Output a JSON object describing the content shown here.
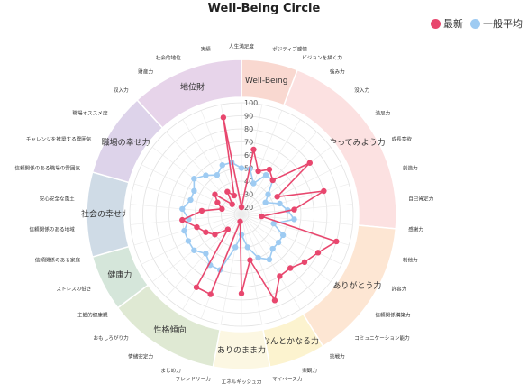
{
  "chart_data": {
    "type": "radar",
    "title": "Well-Being Circle",
    "legend": [
      "最新",
      "一般平均"
    ],
    "legend_position": "top-right",
    "radial_ticks": [
      20,
      30,
      40,
      50,
      60,
      70,
      80,
      90,
      100
    ],
    "rlim": [
      20,
      100
    ],
    "colors": {
      "latest": "#e8476e",
      "average": "#9ecbf2"
    },
    "categories": [
      "人生満足度",
      "ポジティブ感情",
      "ビジョンを描く力",
      "強み力",
      "没入力",
      "満足力",
      "成長意欲",
      "創造力",
      "自己肯定力",
      "感謝力",
      "利他力",
      "許容力",
      "信頼関係構築力",
      "コミュニケーション能力",
      "挑戦力",
      "楽観力",
      "マイペース力",
      "エネルギッシュ力",
      "フレンドリー力",
      "まじめ力",
      "情緒安定力",
      "おもしろがり力",
      "主観的健康観",
      "ストレスの低さ",
      "信頼関係のある家庭",
      "信頼関係のある地域",
      "安心安全な風土",
      "信頼関係のある職場の雰囲気",
      "チャレンジを推奨する雰囲気",
      "職場オススメ度",
      "収入力",
      "財産力",
      "社会的地位",
      "実績"
    ],
    "series": [
      {
        "name": "最新",
        "values": [
          20,
          65,
          50,
          55,
          50,
          80,
          45,
          80,
          55,
          30,
          90,
          80,
          75,
          70,
          70,
          85,
          50,
          75,
          20,
          80,
          80,
          30,
          40,
          45,
          50,
          60,
          45,
          30,
          35,
          40,
          25,
          35,
          30,
          90
        ]
      },
      {
        "name": "一般平均",
        "values": [
          50,
          50,
          40,
          50,
          50,
          40,
          35,
          45,
          50,
          55,
          40,
          50,
          50,
          50,
          55,
          50,
          40,
          30,
          40,
          60,
          60,
          55,
          60,
          60,
          60,
          55,
          60,
          55,
          55,
          60,
          55,
          50,
          55,
          55
        ]
      }
    ],
    "groups": [
      {
        "name": "Well-Being",
        "start": 0,
        "end": 2,
        "color": "#f9d8d0"
      },
      {
        "name": "やってみよう力",
        "start": 2,
        "end": 9,
        "color": "#fce1e1"
      },
      {
        "name": "ありがとう力",
        "start": 9,
        "end": 14,
        "color": "#fde6d3"
      },
      {
        "name": "なんとかなる力",
        "start": 14,
        "end": 16,
        "color": "#fcf3cf"
      },
      {
        "name": "ありのまま力",
        "start": 16,
        "end": 18,
        "color": "#fcf7e2"
      },
      {
        "name": "性格傾向",
        "start": 18,
        "end": 22,
        "color": "#dfe9d3"
      },
      {
        "name": "健康力",
        "start": 22,
        "end": 24,
        "color": "#d5e6da"
      },
      {
        "name": "社会の幸せ力",
        "start": 24,
        "end": 27,
        "color": "#cfdbe6"
      },
      {
        "name": "職場の幸せ力",
        "start": 27,
        "end": 30,
        "color": "#ddd3ea"
      },
      {
        "name": "地位財",
        "start": 30,
        "end": 34,
        "color": "#e7d4ea"
      }
    ]
  }
}
